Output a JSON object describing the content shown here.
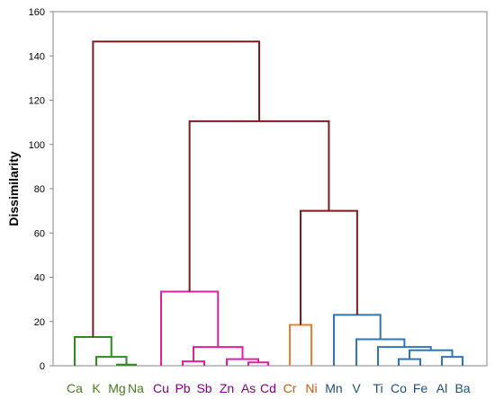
{
  "chart_data": {
    "type": "dendrogram",
    "ylabel": "Dissimilarity",
    "ylim": [
      0,
      160
    ],
    "yticks": [
      0,
      20,
      40,
      60,
      80,
      100,
      120,
      140,
      160
    ],
    "grid": false,
    "leaves": [
      {
        "name": "Ca",
        "color": "#4a7a1e"
      },
      {
        "name": "K",
        "color": "#4a7a1e"
      },
      {
        "name": "Mg",
        "color": "#4a7a1e"
      },
      {
        "name": "Na",
        "color": "#4a7a1e"
      },
      {
        "name": "Cu",
        "color": "#800080"
      },
      {
        "name": "Pb",
        "color": "#800080"
      },
      {
        "name": "Sb",
        "color": "#800080"
      },
      {
        "name": "Zn",
        "color": "#800080"
      },
      {
        "name": "As",
        "color": "#800080"
      },
      {
        "name": "Cd",
        "color": "#800080"
      },
      {
        "name": "Cr",
        "color": "#c55a11"
      },
      {
        "name": "Ni",
        "color": "#c55a11"
      },
      {
        "name": "Mn",
        "color": "#1f4e79"
      },
      {
        "name": "V",
        "color": "#1f4e79"
      },
      {
        "name": "Ti",
        "color": "#1f4e79"
      },
      {
        "name": "Co",
        "color": "#1f4e79"
      },
      {
        "name": "Fe",
        "color": "#1f4e79"
      },
      {
        "name": "Al",
        "color": "#1f4e79"
      },
      {
        "name": "Ba",
        "color": "#1f4e79"
      }
    ],
    "merges": [
      {
        "left": 2,
        "right": 3,
        "height": 0.5,
        "color": "#2e8b1e"
      },
      {
        "left": 1,
        "right": 19,
        "height": 4,
        "color": "#2e8b1e"
      },
      {
        "left": 0,
        "right": 20,
        "height": 13,
        "color": "#2e8b1e"
      },
      {
        "left": 8,
        "right": 9,
        "height": 1.5,
        "color": "#e020a0"
      },
      {
        "left": 5,
        "right": 6,
        "height": 2,
        "color": "#e020a0"
      },
      {
        "left": 7,
        "right": 22,
        "height": 3,
        "color": "#e020a0"
      },
      {
        "left": 23,
        "right": 24,
        "height": 8.5,
        "color": "#e020a0"
      },
      {
        "left": 4,
        "right": 25,
        "height": 33.5,
        "color": "#e020a0"
      },
      {
        "left": 10,
        "right": 11,
        "height": 18.5,
        "color": "#ed7d31"
      },
      {
        "left": 15,
        "right": 16,
        "height": 3,
        "color": "#2e75b6"
      },
      {
        "left": 17,
        "right": 18,
        "height": 4,
        "color": "#2e75b6"
      },
      {
        "left": 28,
        "right": 29,
        "height": 7,
        "color": "#2e75b6"
      },
      {
        "left": 14,
        "right": 30,
        "height": 8.5,
        "color": "#2e75b6"
      },
      {
        "left": 13,
        "right": 31,
        "height": 12,
        "color": "#2e75b6"
      },
      {
        "left": 12,
        "right": 32,
        "height": 23,
        "color": "#2e75b6"
      },
      {
        "left": 27,
        "right": 33,
        "height": 70,
        "color": "#7b1c1c"
      },
      {
        "left": 26,
        "right": 34,
        "height": 110.5,
        "color": "#7b1c1c"
      },
      {
        "left": 21,
        "right": 35,
        "height": 146.5,
        "color": "#7b1c1c"
      }
    ]
  }
}
